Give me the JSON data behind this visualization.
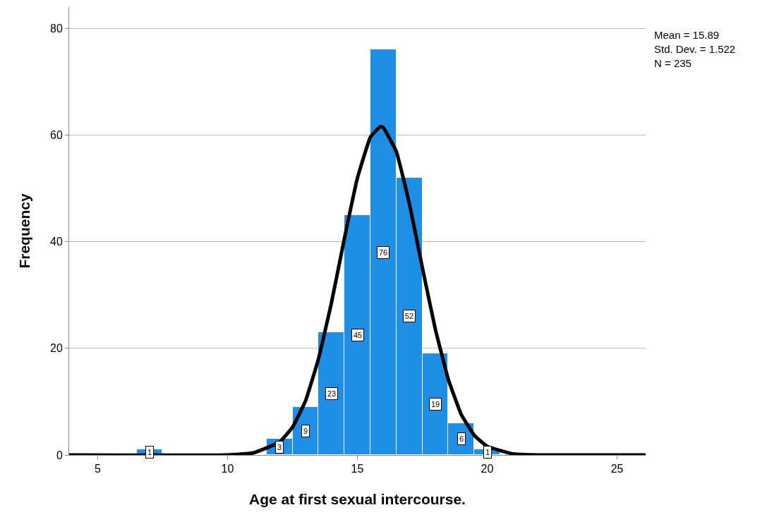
{
  "chart_data": {
    "type": "histogram",
    "xlabel": "Age at first sexual intercourse.",
    "ylabel": "Frequency",
    "xlim": [
      3.9,
      26.1
    ],
    "xticks": [
      5,
      10,
      15,
      20,
      25
    ],
    "ylim": [
      0,
      84
    ],
    "yticks": [
      0,
      20,
      40,
      60,
      80
    ],
    "grid": "y",
    "annotations": [
      "Mean = 15.89",
      "Std. Dev. = 1.522",
      "N = 235"
    ],
    "series": [
      {
        "color": "#1f8fe6",
        "bins": [
          6.5,
          7.5,
          8.5,
          9.5,
          10.5,
          11.5,
          12.5,
          13.5,
          14.5,
          15.5,
          16.5,
          17.5,
          18.5,
          19.5,
          20.5
        ],
        "values": [
          1,
          0,
          0,
          0,
          0,
          3,
          9,
          23,
          45,
          76,
          52,
          19,
          6,
          1
        ],
        "value_labels": [
          "1",
          null,
          null,
          null,
          null,
          "3",
          "9",
          "23",
          "45",
          "76",
          "52",
          "19",
          "6",
          "1"
        ]
      },
      {
        "type": "line",
        "color": "#000000",
        "x": [
          3.9,
          10,
          11,
          12,
          12.5,
          13,
          13.5,
          14,
          14.5,
          15,
          15.5,
          15.89,
          16,
          16.5,
          17,
          17.5,
          18,
          18.5,
          19,
          19.5,
          20,
          21,
          22,
          26.1
        ],
        "values": [
          0,
          0,
          0.4,
          2.4,
          5.2,
          10.1,
          18.0,
          28.5,
          40.6,
          51.9,
          59.6,
          61.6,
          61.4,
          56.9,
          47.2,
          35.2,
          23.6,
          14.2,
          7.6,
          3.7,
          1.6,
          0.2,
          0,
          0
        ]
      }
    ]
  }
}
